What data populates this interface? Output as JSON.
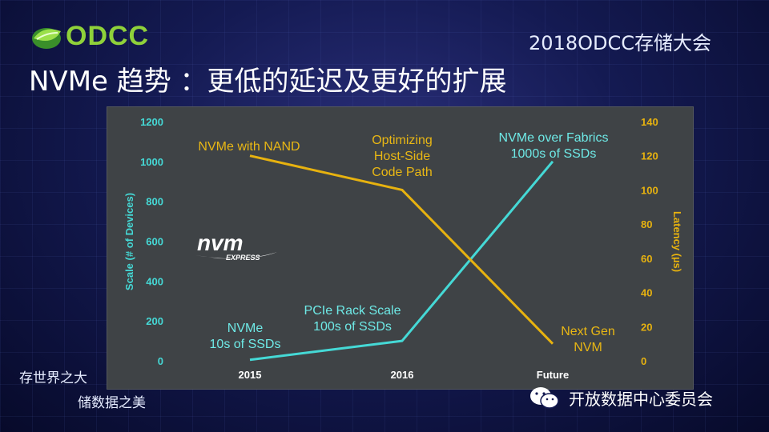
{
  "header": {
    "logo_text": "ODCC",
    "conference_title": "2018ODCC存储大会",
    "slide_title": "NVMe 趋势 ：更低的延迟及更好的扩展"
  },
  "footer": {
    "slogan_line1": "存世界之大",
    "slogan_line2": "储数据之美",
    "wechat_label": "开放数据中心委员会"
  },
  "colors": {
    "scale_series": "#45d9d6",
    "latency_series": "#e7b20f",
    "plot_background": "#3f4346"
  },
  "chart_data": {
    "type": "line",
    "categories": [
      "2015",
      "2016",
      "Future"
    ],
    "left_axis": {
      "label": "Scale (# of Devices)",
      "ylim": [
        0,
        1200
      ],
      "ticks": [
        "0",
        "200",
        "400",
        "600",
        "800",
        "1000",
        "1200"
      ]
    },
    "right_axis": {
      "label": "Latency (µs)",
      "ylim": [
        0,
        140
      ],
      "ticks": [
        "0",
        "20",
        "40",
        "60",
        "80",
        "100",
        "120",
        "140"
      ]
    },
    "series": [
      {
        "axis": "left",
        "values": [
          5,
          100,
          1000
        ]
      },
      {
        "axis": "right",
        "values": [
          120,
          100,
          10
        ]
      }
    ],
    "grid": false,
    "annotations": [
      {
        "text": [
          "NVMe with NAND"
        ],
        "series": "latency"
      },
      {
        "text": [
          "Optimizing",
          "Host-Side",
          "Code Path"
        ],
        "series": "latency"
      },
      {
        "text": [
          "Next Gen",
          "NVM"
        ],
        "series": "latency"
      },
      {
        "text": [
          "NVMe",
          "10s of SSDs"
        ],
        "series": "scale"
      },
      {
        "text": [
          "PCIe Rack Scale",
          "100s of SSDs"
        ],
        "series": "scale"
      },
      {
        "text": [
          "NVMe over Fabrics",
          "1000s of SSDs"
        ],
        "series": "scale"
      }
    ],
    "logo_text": [
      "nvm",
      "EXPRESS"
    ]
  }
}
